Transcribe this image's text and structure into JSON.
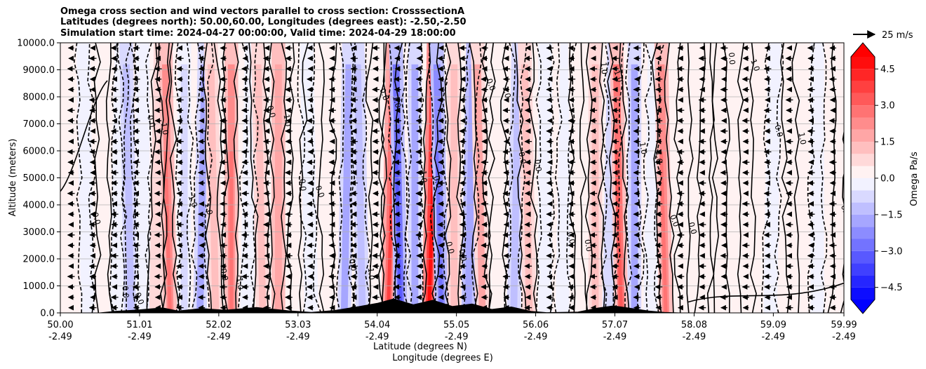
{
  "chart_data": {
    "type": "contour-cross-section",
    "title_lines": [
      "Omega cross section and wind vectors parallel to cross section: CrosssectionA",
      "Latitudes (degrees north): 50.00,60.00, Longitudes (degrees east): -2.50,-2.50",
      "Simulation start time: 2024-04-27 00:00:00, Valid time: 2024-04-29 18:00:00"
    ],
    "ylabel": "Altitude (meters)",
    "xlabel_lines": [
      "Latitude (degrees N)",
      "Longitude (degrees E)"
    ],
    "x_range": [
      50.0,
      59.99
    ],
    "y_range": [
      0,
      10000
    ],
    "grid": "horizontal",
    "x_ticks": [
      {
        "lat": "50.00",
        "lon": "-2.49",
        "value": 50.0
      },
      {
        "lat": "51.01",
        "lon": "-2.49",
        "value": 51.01
      },
      {
        "lat": "52.02",
        "lon": "-2.49",
        "value": 52.02
      },
      {
        "lat": "53.03",
        "lon": "-2.49",
        "value": 53.03
      },
      {
        "lat": "54.04",
        "lon": "-2.49",
        "value": 54.04
      },
      {
        "lat": "55.05",
        "lon": "-2.49",
        "value": 55.05
      },
      {
        "lat": "56.06",
        "lon": "-2.49",
        "value": 56.06
      },
      {
        "lat": "57.07",
        "lon": "-2.49",
        "value": 57.07
      },
      {
        "lat": "58.08",
        "lon": "-2.49",
        "value": 58.08
      },
      {
        "lat": "59.09",
        "lon": "-2.49",
        "value": 59.09
      },
      {
        "lat": "59.99",
        "lon": "-2.49",
        "value": 59.99
      }
    ],
    "y_ticks": [
      {
        "label": "0.0",
        "value": 0
      },
      {
        "label": "1000.0",
        "value": 1000
      },
      {
        "label": "2000.0",
        "value": 2000
      },
      {
        "label": "3000.0",
        "value": 3000
      },
      {
        "label": "4000.0",
        "value": 4000
      },
      {
        "label": "5000.0",
        "value": 5000
      },
      {
        "label": "6000.0",
        "value": 6000
      },
      {
        "label": "7000.0",
        "value": 7000
      },
      {
        "label": "8000.0",
        "value": 8000
      },
      {
        "label": "9000.0",
        "value": 9000
      },
      {
        "label": "10000.0",
        "value": 10000
      }
    ],
    "colorbar": {
      "label": "Omega Pa/s",
      "range": [
        -5,
        5
      ],
      "extend": "both",
      "ticks": [
        {
          "label": "4.5",
          "value": 4.5
        },
        {
          "label": "3.0",
          "value": 3.0
        },
        {
          "label": "1.5",
          "value": 1.5
        },
        {
          "label": "0.0",
          "value": 0.0
        },
        {
          "label": "−1.5",
          "value": -1.5
        },
        {
          "label": "−3.0",
          "value": -3.0
        },
        {
          "label": "−4.5",
          "value": -4.5
        }
      ],
      "levels": 20,
      "colormap": "bwr",
      "color_low": "#0000ff",
      "color_mid": "#ffffff",
      "color_high": "#ff0000"
    },
    "wind_key": {
      "label": "25 m/s",
      "speed": 25
    },
    "omega_bands": [
      {
        "lat": 50.35,
        "val": -0.3
      },
      {
        "lat": 50.55,
        "val": 0.4
      },
      {
        "lat": 50.72,
        "val": -0.8
      },
      {
        "lat": 50.9,
        "val": -1.6
      },
      {
        "lat": 51.05,
        "val": -0.6
      },
      {
        "lat": 51.22,
        "val": 1.2
      },
      {
        "lat": 51.4,
        "val": 2.6
      },
      {
        "lat": 51.58,
        "val": -1.1
      },
      {
        "lat": 51.78,
        "val": -2.2
      },
      {
        "lat": 51.98,
        "val": 1.6
      },
      {
        "lat": 52.18,
        "val": 2.8
      },
      {
        "lat": 52.38,
        "val": -0.9
      },
      {
        "lat": 52.58,
        "val": 1.5
      },
      {
        "lat": 52.78,
        "val": 2.4
      },
      {
        "lat": 52.98,
        "val": 0.5
      },
      {
        "lat": 53.2,
        "val": -0.6
      },
      {
        "lat": 53.4,
        "val": 0.8
      },
      {
        "lat": 53.62,
        "val": -2.2
      },
      {
        "lat": 53.85,
        "val": -1.4
      },
      {
        "lat": 54.02,
        "val": 0.6
      },
      {
        "lat": 54.18,
        "val": 3.5
      },
      {
        "lat": 54.34,
        "val": -3.2
      },
      {
        "lat": 54.52,
        "val": -2.0
      },
      {
        "lat": 54.7,
        "val": 4.6
      },
      {
        "lat": 54.86,
        "val": -2.8
      },
      {
        "lat": 55.02,
        "val": 1.3
      },
      {
        "lat": 55.2,
        "val": -2.4
      },
      {
        "lat": 55.38,
        "val": 2.1
      },
      {
        "lat": 55.58,
        "val": 0.3
      },
      {
        "lat": 55.78,
        "val": -1.7
      },
      {
        "lat": 55.98,
        "val": 1.8
      },
      {
        "lat": 56.18,
        "val": -0.2
      },
      {
        "lat": 56.4,
        "val": -0.7
      },
      {
        "lat": 56.62,
        "val": 0.6
      },
      {
        "lat": 56.82,
        "val": 1.8
      },
      {
        "lat": 57.0,
        "val": -1.2
      },
      {
        "lat": 57.15,
        "val": 3.3
      },
      {
        "lat": 57.32,
        "val": -1.9
      },
      {
        "lat": 57.52,
        "val": -0.9
      },
      {
        "lat": 57.72,
        "val": 2.6
      },
      {
        "lat": 57.95,
        "val": 0.2
      },
      {
        "lat": 58.2,
        "val": 0.5
      },
      {
        "lat": 58.45,
        "val": 0.3
      },
      {
        "lat": 58.75,
        "val": 0.4
      },
      {
        "lat": 59.05,
        "val": -0.2
      },
      {
        "lat": 59.35,
        "val": 0.3
      },
      {
        "lat": 59.65,
        "val": -0.3
      },
      {
        "lat": 59.9,
        "val": 0.2
      }
    ],
    "terrain": [
      {
        "lat": 50.5,
        "h": 0
      },
      {
        "lat": 50.7,
        "h": 60
      },
      {
        "lat": 51.0,
        "h": 110
      },
      {
        "lat": 51.3,
        "h": 190
      },
      {
        "lat": 51.5,
        "h": 70
      },
      {
        "lat": 51.8,
        "h": 160
      },
      {
        "lat": 52.1,
        "h": 100
      },
      {
        "lat": 52.5,
        "h": 200
      },
      {
        "lat": 52.9,
        "h": 80
      },
      {
        "lat": 53.2,
        "h": 20
      },
      {
        "lat": 53.5,
        "h": 90
      },
      {
        "lat": 53.8,
        "h": 230
      },
      {
        "lat": 54.05,
        "h": 360
      },
      {
        "lat": 54.25,
        "h": 520
      },
      {
        "lat": 54.5,
        "h": 300
      },
      {
        "lat": 54.75,
        "h": 470
      },
      {
        "lat": 55.0,
        "h": 240
      },
      {
        "lat": 55.25,
        "h": 330
      },
      {
        "lat": 55.5,
        "h": 130
      },
      {
        "lat": 55.75,
        "h": 220
      },
      {
        "lat": 56.0,
        "h": 60
      },
      {
        "lat": 56.2,
        "h": 10
      },
      {
        "lat": 56.6,
        "h": 30
      },
      {
        "lat": 56.85,
        "h": 180
      },
      {
        "lat": 57.05,
        "h": 260
      },
      {
        "lat": 57.25,
        "h": 180
      },
      {
        "lat": 57.5,
        "h": 70
      },
      {
        "lat": 57.7,
        "h": 20
      },
      {
        "lat": 57.9,
        "h": 0
      }
    ],
    "contour_labels": [
      "0.0",
      "1.0",
      "-1.0",
      "-1.0",
      "0.0",
      "1.0",
      "0.0",
      "-1.0",
      "1.0",
      "0.0",
      "1.0",
      "-1.0",
      "0.0",
      "1.0",
      "0.0",
      "0.0",
      "-1.0",
      "0.0",
      "1.0",
      "0.0",
      "1.0",
      "0.0",
      "0.0",
      "-1.0",
      "0.0",
      "0.0",
      "1.0",
      "0.0",
      "0.0",
      "0.0",
      "0.0",
      "0.0",
      "0.0",
      "0.0",
      "0.0",
      "1.0",
      "0.0",
      "0.0"
    ]
  }
}
